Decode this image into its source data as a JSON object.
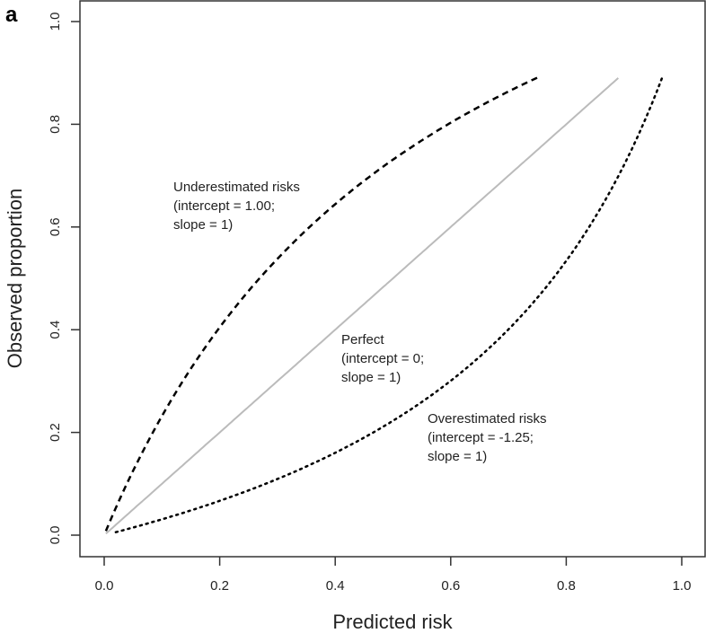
{
  "panel_label": "a",
  "chart_data": {
    "type": "line",
    "title": "",
    "xlabel": "Predicted risk",
    "ylabel": "Observed proportion",
    "xlim": [
      0,
      1
    ],
    "ylim": [
      0,
      1
    ],
    "xticks": [
      "0.0",
      "0.2",
      "0.4",
      "0.6",
      "0.8",
      "1.0"
    ],
    "yticks": [
      "0.0",
      "0.2",
      "0.4",
      "0.6",
      "0.8",
      "1.0"
    ],
    "grid": false,
    "series": [
      {
        "name": "Underestimated risks",
        "intercept": 1.0,
        "slope": 1,
        "x_range": [
          0.003,
          0.75
        ],
        "style": "dashed",
        "color": "#000000",
        "annotation": [
          "Underestimated risks",
          "(intercept = 1.00;",
          "slope = 1)"
        ]
      },
      {
        "name": "Perfect",
        "intercept": 0,
        "slope": 1,
        "x_range": [
          0.003,
          0.89
        ],
        "style": "solid",
        "color": "#bbbbbb",
        "annotation": [
          "Perfect",
          "(intercept = 0;",
          "slope = 1)"
        ]
      },
      {
        "name": "Overestimated risks",
        "intercept": -1.25,
        "slope": 1,
        "x_range": [
          0.02,
          0.966
        ],
        "style": "dotted",
        "color": "#000000",
        "annotation": [
          "Overestimated risks",
          "(intercept = -1.25;",
          "slope = 1)"
        ]
      }
    ]
  }
}
